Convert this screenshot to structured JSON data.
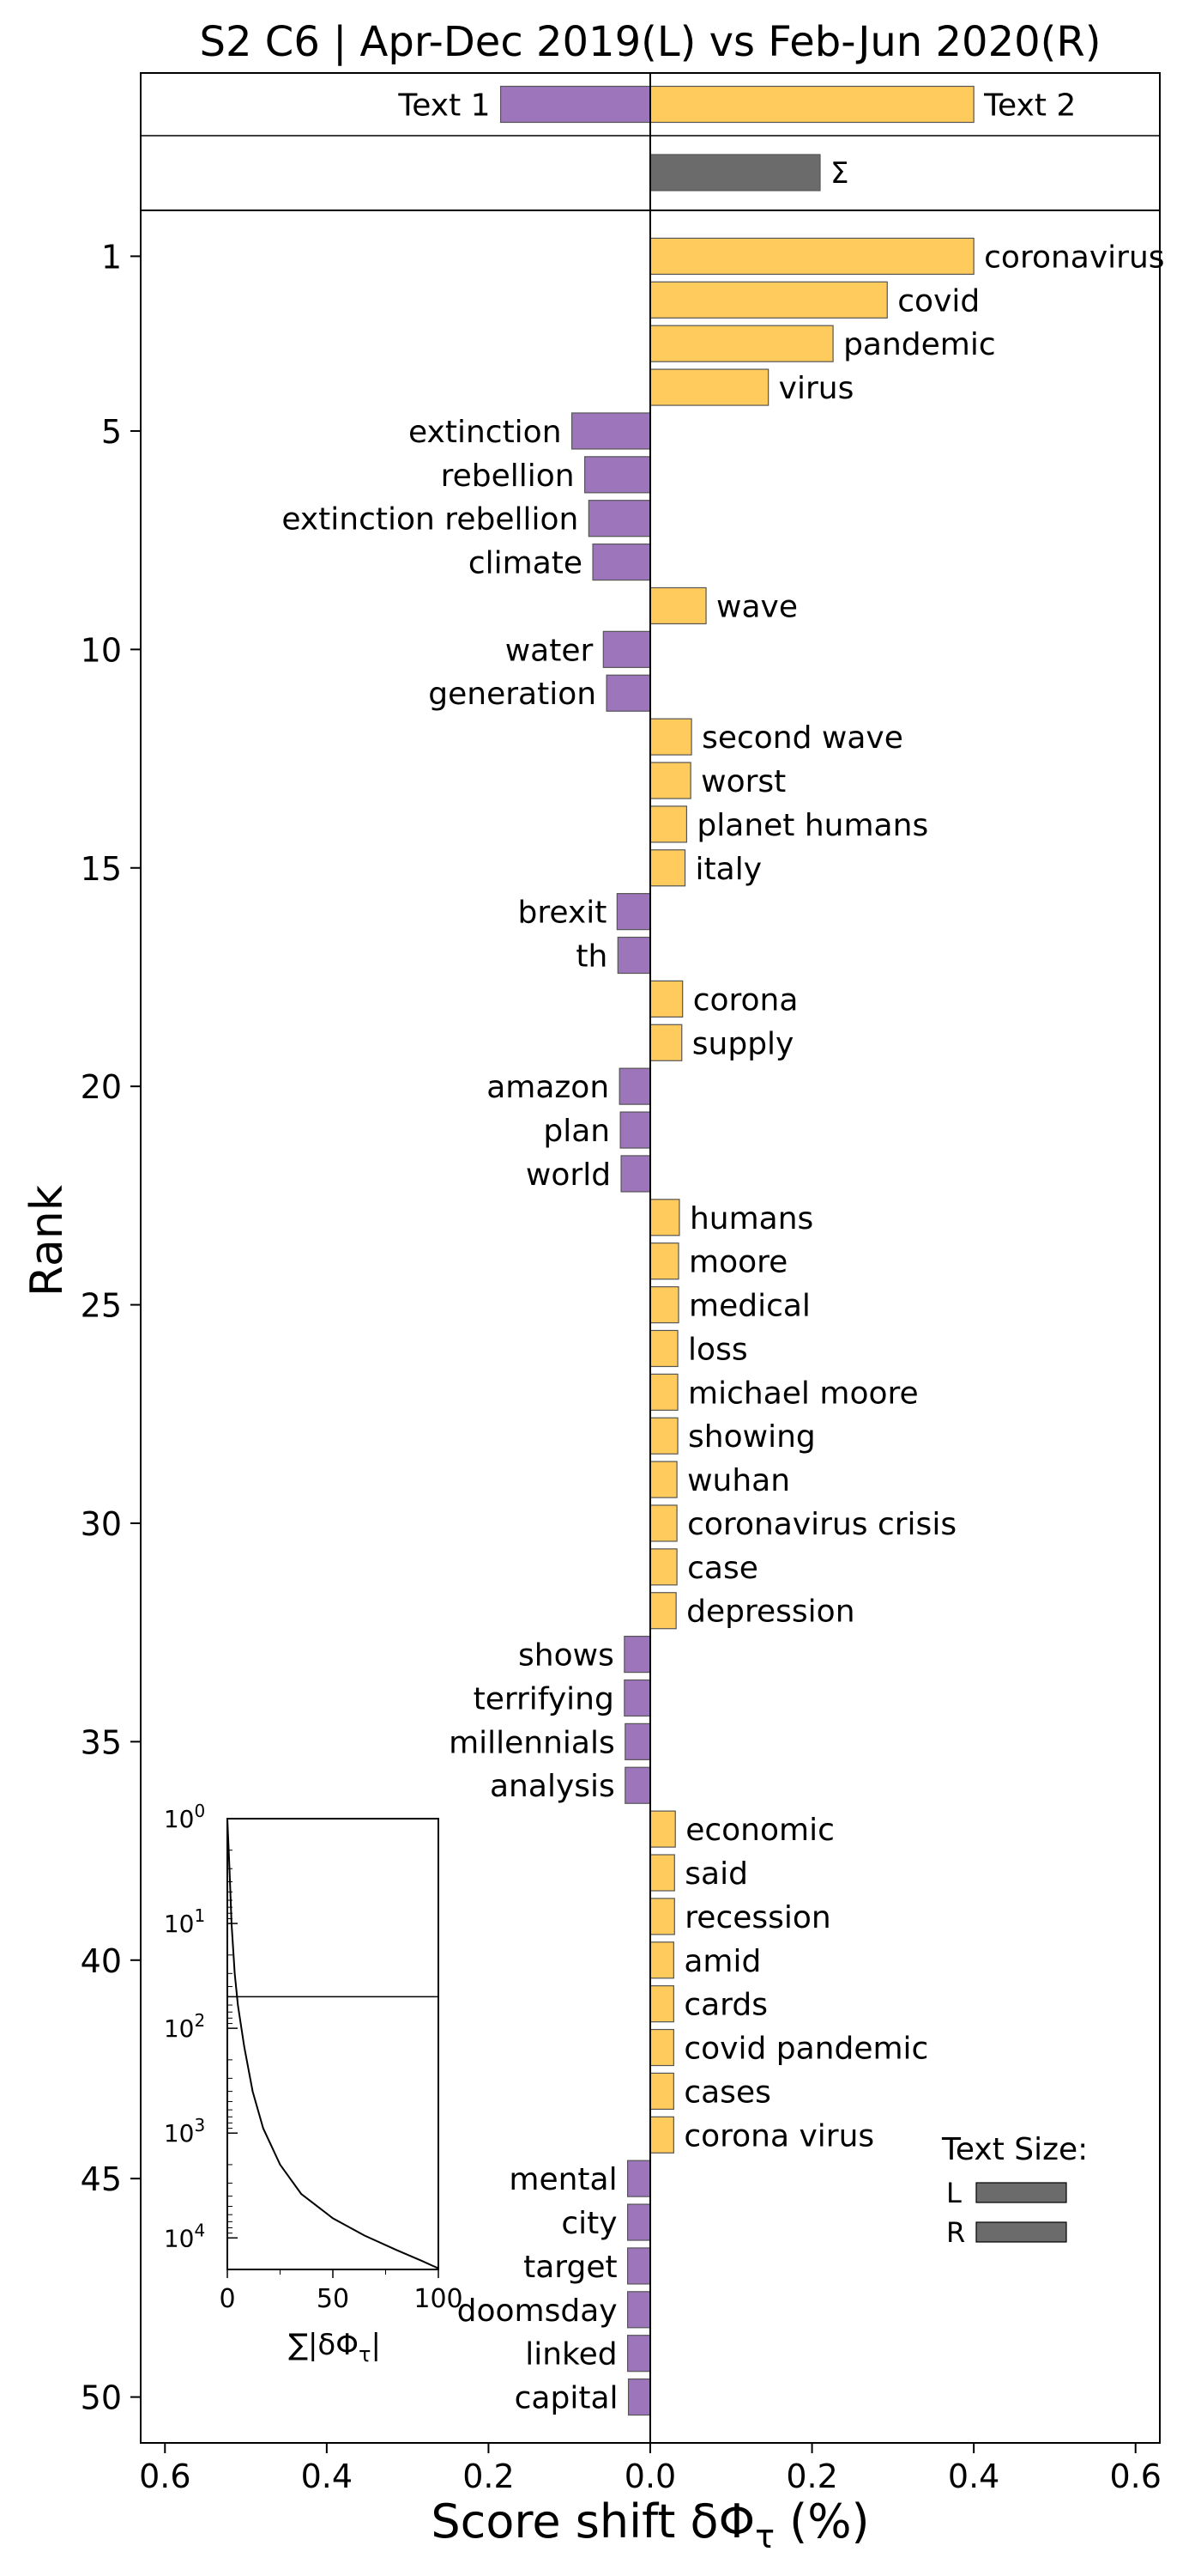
{
  "chart_data": {
    "type": "bar",
    "orientation": "horizontal",
    "title": "S2 C6 | Apr-Dec 2019(L) vs Feb-Jun 2020(R)",
    "xlabel": "Score shift δΦ",
    "xlabel_sub": "τ",
    "xlabel_suffix": " (%)",
    "ylabel": "Rank",
    "xlim": [
      -0.63,
      0.63
    ],
    "x_ticks": [
      -0.6,
      -0.4,
      -0.2,
      0.0,
      0.2,
      0.4,
      0.6
    ],
    "x_tick_labels": [
      "0.6",
      "0.4",
      "0.2",
      "0.0",
      "0.2",
      "0.4",
      "0.6"
    ],
    "y_ticks": [
      1,
      5,
      10,
      15,
      20,
      25,
      30,
      35,
      40,
      45,
      50
    ],
    "y_tick_labels": [
      "1",
      "5",
      "10",
      "15",
      "20",
      "25",
      "30",
      "35",
      "40",
      "45",
      "50"
    ],
    "colors": {
      "left": "#9C75BB",
      "right": "#FFCB5C",
      "sum": "#6B6B6B",
      "edge": "#555555"
    },
    "totals": [
      {
        "label": "Text 1",
        "value": -0.185,
        "side": "left"
      },
      {
        "label": "Text 2",
        "value": 0.4,
        "side": "right"
      }
    ],
    "sum": {
      "label": "Σ",
      "value": 0.21
    },
    "words": [
      {
        "rank": 1,
        "word": "coronavirus",
        "value": 0.4
      },
      {
        "rank": 2,
        "word": "covid",
        "value": 0.293
      },
      {
        "rank": 3,
        "word": "pandemic",
        "value": 0.226
      },
      {
        "rank": 4,
        "word": "virus",
        "value": 0.146
      },
      {
        "rank": 5,
        "word": "extinction",
        "value": -0.097
      },
      {
        "rank": 6,
        "word": "rebellion",
        "value": -0.081
      },
      {
        "rank": 7,
        "word": "extinction rebellion",
        "value": -0.076
      },
      {
        "rank": 8,
        "word": "climate",
        "value": -0.071
      },
      {
        "rank": 9,
        "word": "wave",
        "value": 0.069
      },
      {
        "rank": 10,
        "word": "water",
        "value": -0.058
      },
      {
        "rank": 11,
        "word": "generation",
        "value": -0.054
      },
      {
        "rank": 12,
        "word": "second wave",
        "value": 0.051
      },
      {
        "rank": 13,
        "word": "worst",
        "value": 0.05
      },
      {
        "rank": 14,
        "word": "planet humans",
        "value": 0.045
      },
      {
        "rank": 15,
        "word": "italy",
        "value": 0.043
      },
      {
        "rank": 16,
        "word": "brexit",
        "value": -0.041
      },
      {
        "rank": 17,
        "word": "th",
        "value": -0.04
      },
      {
        "rank": 18,
        "word": "corona",
        "value": 0.04
      },
      {
        "rank": 19,
        "word": "supply",
        "value": 0.039
      },
      {
        "rank": 20,
        "word": "amazon",
        "value": -0.038
      },
      {
        "rank": 21,
        "word": "plan",
        "value": -0.037
      },
      {
        "rank": 22,
        "word": "world",
        "value": -0.036
      },
      {
        "rank": 23,
        "word": "humans",
        "value": 0.036
      },
      {
        "rank": 24,
        "word": "moore",
        "value": 0.035
      },
      {
        "rank": 25,
        "word": "medical",
        "value": 0.035
      },
      {
        "rank": 26,
        "word": "loss",
        "value": 0.034
      },
      {
        "rank": 27,
        "word": "michael moore",
        "value": 0.034
      },
      {
        "rank": 28,
        "word": "showing",
        "value": 0.034
      },
      {
        "rank": 29,
        "word": "wuhan",
        "value": 0.033
      },
      {
        "rank": 30,
        "word": "coronavirus crisis",
        "value": 0.033
      },
      {
        "rank": 31,
        "word": "case",
        "value": 0.033
      },
      {
        "rank": 32,
        "word": "depression",
        "value": 0.032
      },
      {
        "rank": 33,
        "word": "shows",
        "value": -0.032
      },
      {
        "rank": 34,
        "word": "terrifying",
        "value": -0.032
      },
      {
        "rank": 35,
        "word": "millennials",
        "value": -0.031
      },
      {
        "rank": 36,
        "word": "analysis",
        "value": -0.031
      },
      {
        "rank": 37,
        "word": "economic",
        "value": 0.031
      },
      {
        "rank": 38,
        "word": "said",
        "value": 0.03
      },
      {
        "rank": 39,
        "word": "recession",
        "value": 0.03
      },
      {
        "rank": 40,
        "word": "amid",
        "value": 0.029
      },
      {
        "rank": 41,
        "word": "cards",
        "value": 0.029
      },
      {
        "rank": 42,
        "word": "covid pandemic",
        "value": 0.029
      },
      {
        "rank": 43,
        "word": "cases",
        "value": 0.029
      },
      {
        "rank": 44,
        "word": "corona virus",
        "value": 0.029
      },
      {
        "rank": 45,
        "word": "mental",
        "value": -0.028
      },
      {
        "rank": 46,
        "word": "city",
        "value": -0.028
      },
      {
        "rank": 47,
        "word": "target",
        "value": -0.028
      },
      {
        "rank": 48,
        "word": "doomsday",
        "value": -0.028
      },
      {
        "rank": 49,
        "word": "linked",
        "value": -0.028
      },
      {
        "rank": 50,
        "word": "capital",
        "value": -0.027
      }
    ],
    "text_size_legend": {
      "title": "Text Size:",
      "items": [
        {
          "label": "L",
          "size": 1.0
        },
        {
          "label": "R",
          "size": 1.0
        }
      ]
    },
    "inset": {
      "type": "line",
      "xlabel": "∑|δΦ",
      "xlabel_sub": "τ",
      "xlabel_suffix": "|",
      "x_ticks": [
        0,
        50,
        100
      ],
      "x_tick_labels": [
        "0",
        "50",
        "100"
      ],
      "xlim": [
        0,
        100
      ],
      "y_scale": "log",
      "y_ticks": [
        1,
        10,
        100,
        1000,
        10000
      ],
      "y_tick_base": "10",
      "y_tick_exponents": [
        "0",
        "1",
        "2",
        "3",
        "4"
      ],
      "ylim": [
        1,
        20000
      ],
      "hline_rank": 50,
      "curve": [
        {
          "x": 0.0,
          "rank": 1
        },
        {
          "x": 1.0,
          "rank": 3
        },
        {
          "x": 2.0,
          "rank": 10
        },
        {
          "x": 3.5,
          "rank": 30
        },
        {
          "x": 5.0,
          "rank": 60
        },
        {
          "x": 8.0,
          "rank": 150
        },
        {
          "x": 12.0,
          "rank": 400
        },
        {
          "x": 17.0,
          "rank": 900
        },
        {
          "x": 25.0,
          "rank": 2000
        },
        {
          "x": 35.0,
          "rank": 3800
        },
        {
          "x": 50.0,
          "rank": 6500
        },
        {
          "x": 65.0,
          "rank": 9500
        },
        {
          "x": 80.0,
          "rank": 13000
        },
        {
          "x": 92.0,
          "rank": 16500
        },
        {
          "x": 100.0,
          "rank": 19500
        }
      ]
    }
  }
}
